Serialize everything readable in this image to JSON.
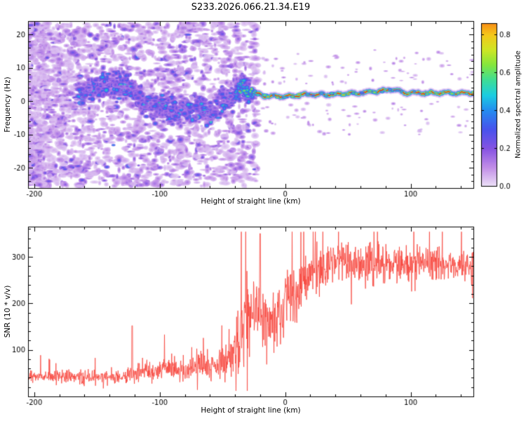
{
  "figure": {
    "title": "S233.2026.066.21.34.E19",
    "background_color": "#ffffff"
  },
  "chart_data": [
    {
      "type": "heatmap",
      "title": "S233.2026.066.21.34.E19",
      "xlabel": "Height of straight line (km)",
      "ylabel": "Frequency (Hz)",
      "xlim": [
        -205,
        150
      ],
      "ylim": [
        -26,
        24
      ],
      "xticks": [
        -200,
        -100,
        0,
        100
      ],
      "yticks": [
        -20,
        -10,
        0,
        10,
        20
      ],
      "x_minor_step": 20,
      "y_minor_step": 2,
      "grid": false,
      "colorbar": {
        "label": "Normalized spectral amplitude",
        "ticks": [
          "0.0",
          "0.2",
          "0.4",
          "0.6",
          "0.8"
        ],
        "tick_values": [
          0,
          0.2,
          0.4,
          0.6,
          0.8
        ],
        "vmax_display": 0.86,
        "colormap_stops": [
          [
            0.0,
            236,
            224,
            247
          ],
          [
            0.1,
            193,
            141,
            231
          ],
          [
            0.2,
            133,
            82,
            226
          ],
          [
            0.3,
            72,
            82,
            236
          ],
          [
            0.4,
            36,
            140,
            240
          ],
          [
            0.48,
            27,
            205,
            226
          ],
          [
            0.56,
            62,
            221,
            150
          ],
          [
            0.64,
            131,
            230,
            62
          ],
          [
            0.72,
            206,
            230,
            37
          ],
          [
            0.8,
            245,
            200,
            26
          ],
          [
            0.88,
            248,
            122,
            21
          ],
          [
            1.0,
            221,
            16,
            26
          ]
        ]
      },
      "content": {
        "description": "Dense low-amplitude (purple) spectral noise fills the full -26 to 24 Hz band at heights below about -30 km, thinning toward higher heights; a meandering concentration of moderate amplitude (blue-cyan) follows the ridge between about -160 and -30 km, and above about -25 km the spectrum collapses to a narrow high-amplitude (green-yellow-red) line near +2 Hz that persists to 150 km.",
        "ridge_x": [
          -160,
          -140,
          -125,
          -110,
          -95,
          -85,
          -70,
          -60,
          -50,
          -42,
          -35,
          -30,
          -25,
          -15,
          0,
          20,
          40,
          60,
          75,
          85,
          95,
          110,
          130,
          150
        ],
        "ridge_f": [
          3,
          5,
          4,
          -1,
          -2,
          -3,
          -2,
          -4,
          0,
          1,
          5,
          3,
          2.5,
          1.5,
          1.5,
          2,
          2,
          2.5,
          3,
          3.5,
          2.5,
          2.5,
          2.5,
          2.5
        ],
        "noise_region": {
          "x_range": [
            -205,
            -22
          ],
          "f_range": [
            -25.5,
            23.5
          ],
          "amp_range": [
            0.05,
            0.34
          ],
          "blob_count": 2600
        },
        "band_region": {
          "x_range": [
            -165,
            -26
          ],
          "f_spread": 5.5,
          "amp_range": [
            0.2,
            0.72
          ],
          "blob_count": 750
        },
        "line_region": {
          "x_range": [
            -27,
            150
          ],
          "amp_range": [
            0.7,
            1.0
          ]
        }
      }
    },
    {
      "type": "line",
      "xlabel": "Height of straight line (km)",
      "ylabel": "SNR (10 * v/v)",
      "xlim": [
        -205,
        150
      ],
      "ylim": [
        0,
        365
      ],
      "xticks": [
        -200,
        -100,
        0,
        100
      ],
      "yticks": [
        100,
        200,
        300
      ],
      "x_minor_step": 20,
      "y_minor_step": 20,
      "line_color": "#f8423a",
      "description": "Noisy SNR trace: flat near 40-55 below -130 km with an isolated spike to ~150 at -122 km, gradually noisier to -40 km, steep noisy rise between -40 and +20 km with spikes up to ~350, then a plateau near 280-300 with occasional spikes and dropouts out to 150 km.",
      "envelope": {
        "x": [
          -205,
          -130,
          -122,
          -120,
          -100,
          -80,
          -60,
          -50,
          -40,
          -32,
          -25,
          -20,
          -15,
          -10,
          -5,
          0,
          5,
          10,
          15,
          20,
          30,
          40,
          50,
          60,
          80,
          100,
          120,
          150
        ],
        "mean": [
          42,
          42,
          50,
          52,
          58,
          60,
          66,
          76,
          100,
          150,
          195,
          170,
          180,
          155,
          190,
          210,
          228,
          224,
          248,
          266,
          278,
          284,
          290,
          283,
          285,
          280,
          285,
          284
        ],
        "noise": [
          11,
          11,
          14,
          16,
          20,
          22,
          26,
          33,
          55,
          65,
          62,
          58,
          56,
          54,
          55,
          52,
          50,
          48,
          46,
          42,
          34,
          30,
          30,
          34,
          32,
          30,
          30,
          28
        ]
      },
      "spikes": [
        {
          "x": -122,
          "y": 152
        },
        {
          "x": -20,
          "y": 350
        }
      ]
    }
  ]
}
